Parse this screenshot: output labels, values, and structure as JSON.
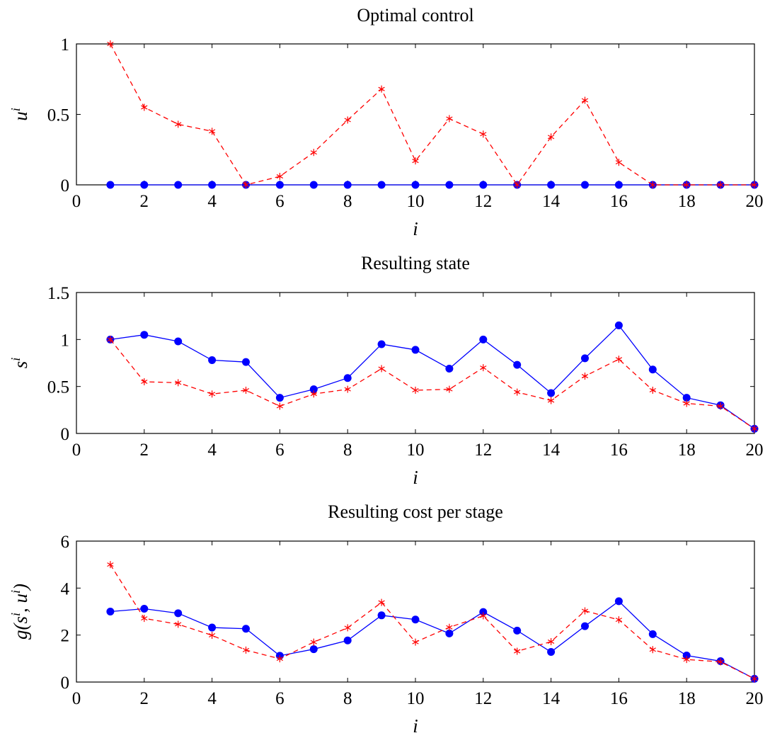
{
  "chart_data": [
    {
      "type": "line",
      "title": "Optimal control",
      "xlabel": "i",
      "ylabel": "u^i",
      "ylabel_base": "u",
      "ylabel_sup": "i",
      "xlim": [
        0,
        20
      ],
      "ylim": [
        0,
        1
      ],
      "xticks": [
        0,
        2,
        4,
        6,
        8,
        10,
        12,
        14,
        16,
        18,
        20
      ],
      "yticks": [
        0,
        0.5,
        1
      ],
      "ytick_labels": [
        "0",
        "0.5",
        "1"
      ],
      "x": [
        1,
        2,
        3,
        4,
        5,
        6,
        7,
        8,
        9,
        10,
        11,
        12,
        13,
        14,
        15,
        16,
        17,
        18,
        19,
        20
      ],
      "series": [
        {
          "color": "#0000ff",
          "style": "solid",
          "marker": "circle",
          "values": [
            0,
            0,
            0,
            0,
            0,
            0,
            0,
            0,
            0,
            0,
            0,
            0,
            0,
            0,
            0,
            0,
            0,
            0,
            0,
            0
          ]
        },
        {
          "color": "#ff0000",
          "style": "dashed",
          "marker": "asterisk",
          "values": [
            1.0,
            0.55,
            0.43,
            0.38,
            0.0,
            0.06,
            0.23,
            0.46,
            0.68,
            0.17,
            0.47,
            0.36,
            0.0,
            0.34,
            0.6,
            0.16,
            0.0,
            0.0,
            0.0,
            0.0
          ]
        }
      ],
      "grid": false
    },
    {
      "type": "line",
      "title": "Resulting state",
      "xlabel": "i",
      "ylabel": "s^i",
      "ylabel_base": "s",
      "ylabel_sup": "i",
      "xlim": [
        0,
        20
      ],
      "ylim": [
        0,
        1.5
      ],
      "xticks": [
        0,
        2,
        4,
        6,
        8,
        10,
        12,
        14,
        16,
        18,
        20
      ],
      "yticks": [
        0,
        0.5,
        1,
        1.5
      ],
      "ytick_labels": [
        "0",
        "0.5",
        "1",
        "1.5"
      ],
      "x": [
        1,
        2,
        3,
        4,
        5,
        6,
        7,
        8,
        9,
        10,
        11,
        12,
        13,
        14,
        15,
        16,
        17,
        18,
        19,
        20
      ],
      "series": [
        {
          "color": "#0000ff",
          "style": "solid",
          "marker": "circle",
          "values": [
            1.0,
            1.05,
            0.98,
            0.78,
            0.76,
            0.38,
            0.47,
            0.59,
            0.95,
            0.89,
            0.69,
            1.0,
            0.73,
            0.43,
            0.8,
            1.15,
            0.68,
            0.38,
            0.3,
            0.05
          ]
        },
        {
          "color": "#ff0000",
          "style": "dashed",
          "marker": "asterisk",
          "values": [
            1.0,
            0.55,
            0.54,
            0.42,
            0.46,
            0.29,
            0.42,
            0.47,
            0.69,
            0.46,
            0.47,
            0.7,
            0.44,
            0.35,
            0.61,
            0.79,
            0.46,
            0.32,
            0.29,
            0.05
          ]
        }
      ],
      "grid": false
    },
    {
      "type": "line",
      "title": "Resulting cost per stage",
      "xlabel": "i",
      "ylabel": "g(s^i, u^i)",
      "ylabel_parts": [
        "g(s",
        "i",
        ", u",
        "i",
        ")"
      ],
      "xlim": [
        0,
        20
      ],
      "ylim": [
        0,
        6
      ],
      "xticks": [
        0,
        2,
        4,
        6,
        8,
        10,
        12,
        14,
        16,
        18,
        20
      ],
      "yticks": [
        0,
        2,
        4,
        6
      ],
      "ytick_labels": [
        "0",
        "2",
        "4",
        "6"
      ],
      "x": [
        1,
        2,
        3,
        4,
        5,
        6,
        7,
        8,
        9,
        10,
        11,
        12,
        13,
        14,
        15,
        16,
        17,
        18,
        19,
        20
      ],
      "series": [
        {
          "color": "#0000ff",
          "style": "solid",
          "marker": "circle",
          "values": [
            3.0,
            3.12,
            2.93,
            2.32,
            2.27,
            1.12,
            1.4,
            1.77,
            2.84,
            2.66,
            2.07,
            2.98,
            2.19,
            1.28,
            2.38,
            3.44,
            2.04,
            1.13,
            0.89,
            0.14
          ]
        },
        {
          "color": "#ff0000",
          "style": "dashed",
          "marker": "asterisk",
          "values": [
            5.0,
            2.71,
            2.46,
            1.99,
            1.36,
            0.99,
            1.7,
            2.31,
            3.39,
            1.7,
            2.33,
            2.82,
            1.31,
            1.72,
            3.03,
            2.65,
            1.38,
            0.96,
            0.86,
            0.14
          ]
        }
      ],
      "grid": false
    }
  ]
}
